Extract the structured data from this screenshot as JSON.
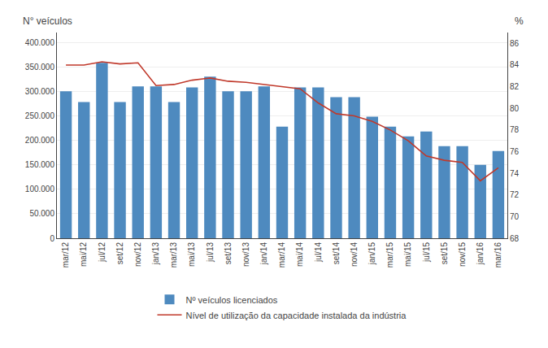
{
  "chart_data": {
    "type": "bar",
    "categories": [
      "mar/12",
      "mai/12",
      "jul/12",
      "set/12",
      "nov/12",
      "jan/13",
      "mar/13",
      "mai/13",
      "jul/13",
      "set/13",
      "nov/13",
      "jan/14",
      "mar/14",
      "mai/14",
      "jul/14",
      "set/14",
      "nov/14",
      "jan/15",
      "mar/15",
      "mai/15",
      "jul/15",
      "set/15",
      "nov/15",
      "jan/16",
      "mar/16"
    ],
    "series": [
      {
        "name": "Nº veículos licenciados",
        "type": "bar",
        "color": "#4e8abf",
        "values": [
          300000,
          278000,
          358000,
          278000,
          310000,
          310000,
          278000,
          308000,
          330000,
          300000,
          300000,
          310000,
          228000,
          308000,
          308000,
          288000,
          288000,
          248000,
          228000,
          208000,
          218000,
          188000,
          188000,
          150000,
          178000
        ]
      },
      {
        "name": "Nível de utilização da capacidade instalada da indústria",
        "type": "line",
        "color": "#c0392b",
        "axis": "y2",
        "values": [
          84.0,
          84.0,
          84.3,
          84.1,
          84.2,
          82.1,
          82.2,
          82.6,
          82.8,
          82.5,
          82.4,
          82.2,
          82.0,
          81.8,
          80.5,
          79.5,
          79.3,
          78.8,
          78.0,
          77.0,
          75.6,
          75.2,
          75.0,
          73.3,
          74.5
        ]
      }
    ],
    "ylabel": "N° veículos",
    "y2label": "%",
    "ylim": [
      0,
      420000
    ],
    "yticks": [
      0,
      {
        "value": 50000,
        "label": "50.000"
      },
      {
        "value": 100000,
        "label": "100.000"
      },
      {
        "value": 150000,
        "label": "150.000"
      },
      {
        "value": 200000,
        "label": "200.000"
      },
      {
        "value": 250000,
        "label": "250.000"
      },
      {
        "value": 300000,
        "label": "300.000"
      },
      {
        "value": 350000,
        "label": "350.000"
      },
      {
        "value": 400000,
        "label": "400.000"
      }
    ],
    "y2lim": [
      68,
      87
    ],
    "y2ticks": [
      68,
      70,
      72,
      74,
      76,
      78,
      80,
      82,
      84,
      86
    ],
    "grid": true,
    "legend": "bottom"
  }
}
